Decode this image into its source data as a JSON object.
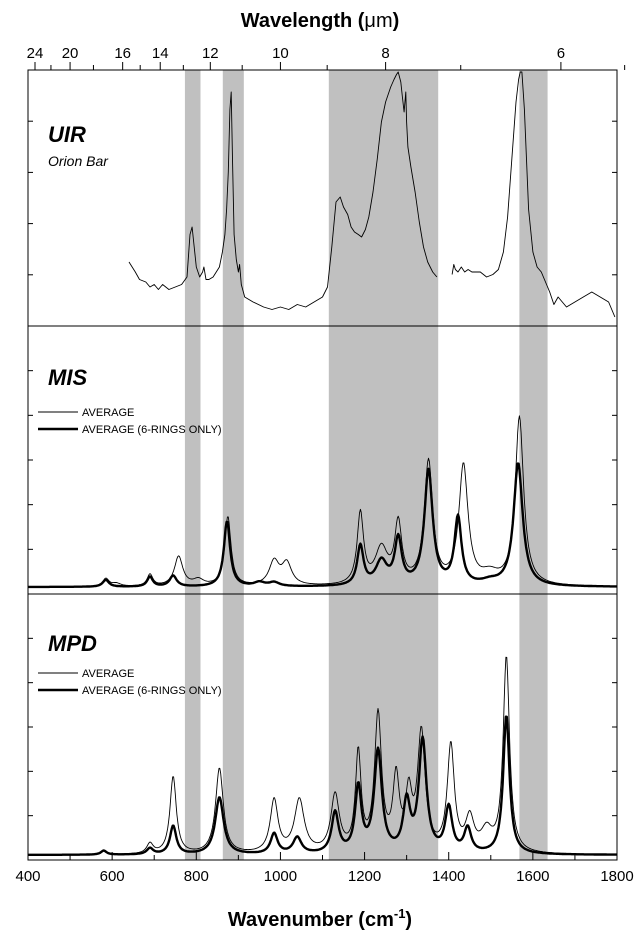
{
  "chart_data": {
    "type": "line",
    "x_label": "Wavenumber (cm",
    "x_label_sup": "-1",
    "x_label_end": ")",
    "x_range": [
      400,
      1800
    ],
    "x_ticks": [
      "400",
      "600",
      "800",
      "1000",
      "1200",
      "1400",
      "1600",
      "1800"
    ],
    "top_axis_label": "Wavelength (",
    "top_axis_label_mu": "μm",
    "top_axis_label_end": ")",
    "top_ticks": [
      {
        "label": "24",
        "value": 24
      },
      {
        "label": "20",
        "value": 20
      },
      {
        "label": "16",
        "value": 16
      },
      {
        "label": "14",
        "value": 14
      },
      {
        "label": "12",
        "value": 12
      },
      {
        "label": "10",
        "value": 10
      },
      {
        "label": "8",
        "value": 8
      },
      {
        "label": "6",
        "value": 6
      }
    ],
    "top_minor_ticks": [
      22,
      18,
      15,
      13,
      11,
      9,
      7,
      5.5
    ],
    "shaded_bands": [
      [
        773,
        810
      ],
      [
        863,
        913
      ],
      [
        1115,
        1375
      ],
      [
        1568,
        1635
      ]
    ],
    "colors": {
      "band": "#c0c0c0",
      "line": "#000000"
    },
    "panels": [
      {
        "title": "UIR",
        "subtitle": "Orion Bar",
        "legend": [],
        "series": [
          {
            "style": "thin",
            "points": [
              [
                640,
                0.24
              ],
              [
                655,
                0.2
              ],
              [
                665,
                0.17
              ],
              [
                680,
                0.16
              ],
              [
                690,
                0.14
              ],
              [
                700,
                0.15
              ],
              [
                710,
                0.13
              ],
              [
                720,
                0.15
              ],
              [
                735,
                0.13
              ],
              [
                750,
                0.14
              ],
              [
                765,
                0.15
              ],
              [
                778,
                0.18
              ],
              [
                785,
                0.35
              ],
              [
                790,
                0.38
              ],
              [
                795,
                0.3
              ],
              [
                800,
                0.22
              ],
              [
                808,
                0.18
              ],
              [
                815,
                0.2
              ],
              [
                818,
                0.22
              ],
              [
                823,
                0.17
              ],
              [
                830,
                0.17
              ],
              [
                840,
                0.18
              ],
              [
                855,
                0.22
              ],
              [
                862,
                0.28
              ],
              [
                868,
                0.35
              ],
              [
                872,
                0.45
              ],
              [
                876,
                0.6
              ],
              [
                880,
                0.85
              ],
              [
                883,
                0.92
              ],
              [
                886,
                0.65
              ],
              [
                890,
                0.35
              ],
              [
                895,
                0.25
              ],
              [
                900,
                0.2
              ],
              [
                903,
                0.23
              ],
              [
                907,
                0.15
              ],
              [
                915,
                0.1
              ],
              [
                935,
                0.08
              ],
              [
                960,
                0.06
              ],
              [
                980,
                0.05
              ],
              [
                1000,
                0.06
              ],
              [
                1020,
                0.05
              ],
              [
                1040,
                0.07
              ],
              [
                1060,
                0.06
              ],
              [
                1080,
                0.08
              ],
              [
                1100,
                0.1
              ],
              [
                1112,
                0.14
              ],
              [
                1122,
                0.3
              ],
              [
                1132,
                0.48
              ],
              [
                1142,
                0.5
              ],
              [
                1150,
                0.46
              ],
              [
                1160,
                0.43
              ],
              [
                1168,
                0.38
              ],
              [
                1176,
                0.36
              ],
              [
                1185,
                0.35
              ],
              [
                1193,
                0.34
              ],
              [
                1202,
                0.37
              ],
              [
                1210,
                0.42
              ],
              [
                1220,
                0.52
              ],
              [
                1230,
                0.65
              ],
              [
                1240,
                0.8
              ],
              [
                1250,
                0.88
              ],
              [
                1262,
                0.94
              ],
              [
                1270,
                0.97
              ],
              [
                1276,
                0.99
              ],
              [
                1280,
                1.0
              ],
              [
                1286,
                0.96
              ],
              [
                1290,
                0.9
              ],
              [
                1294,
                0.84
              ],
              [
                1298,
                0.92
              ],
              [
                1300,
                0.8
              ],
              [
                1303,
                0.7
              ],
              [
                1310,
                0.62
              ],
              [
                1320,
                0.52
              ],
              [
                1330,
                0.4
              ],
              [
                1340,
                0.3
              ],
              [
                1350,
                0.24
              ],
              [
                1362,
                0.2
              ],
              [
                1372,
                0.18
              ]
            ]
          },
          {
            "style": "thin",
            "points": [
              [
                1408,
                0.19
              ],
              [
                1412,
                0.23
              ],
              [
                1416,
                0.21
              ],
              [
                1422,
                0.2
              ],
              [
                1430,
                0.22
              ],
              [
                1438,
                0.2
              ],
              [
                1446,
                0.21
              ],
              [
                1455,
                0.2
              ],
              [
                1465,
                0.2
              ],
              [
                1475,
                0.2
              ],
              [
                1490,
                0.18
              ],
              [
                1505,
                0.19
              ],
              [
                1518,
                0.21
              ],
              [
                1530,
                0.28
              ],
              [
                1540,
                0.42
              ],
              [
                1550,
                0.65
              ],
              [
                1560,
                0.88
              ],
              [
                1566,
                0.97
              ],
              [
                1570,
                1.0
              ],
              [
                1574,
                1.0
              ],
              [
                1580,
                0.85
              ],
              [
                1590,
                0.45
              ],
              [
                1600,
                0.28
              ],
              [
                1610,
                0.22
              ],
              [
                1620,
                0.2
              ],
              [
                1630,
                0.16
              ],
              [
                1640,
                0.12
              ],
              [
                1650,
                0.07
              ],
              [
                1660,
                0.1
              ],
              [
                1670,
                0.08
              ],
              [
                1680,
                0.06
              ],
              [
                1700,
                0.08
              ],
              [
                1720,
                0.1
              ],
              [
                1740,
                0.12
              ],
              [
                1760,
                0.1
              ],
              [
                1780,
                0.08
              ],
              [
                1795,
                0.02
              ]
            ]
          }
        ]
      },
      {
        "title": "MIS",
        "subtitle": "",
        "legend": [
          {
            "label": "AVERAGE",
            "style": "thin"
          },
          {
            "label": "AVERAGE (6-RINGS ONLY)",
            "style": "thick"
          }
        ],
        "series": [
          {
            "name": "AVERAGE",
            "style": "thin",
            "peaks": [
              [
                585,
                0.04,
                9
              ],
              [
                610,
                0.015,
                12
              ],
              [
                690,
                0.06,
                8
              ],
              [
                758,
                0.15,
                12
              ],
              [
                805,
                0.03,
                15
              ],
              [
                875,
                0.35,
                9
              ],
              [
                985,
                0.12,
                14
              ],
              [
                1015,
                0.11,
                14
              ],
              [
                1190,
                0.36,
                9
              ],
              [
                1240,
                0.18,
                18
              ],
              [
                1280,
                0.3,
                10
              ],
              [
                1352,
                0.62,
                12
              ],
              [
                1435,
                0.6,
                13
              ],
              [
                1498,
                0.05,
                25
              ],
              [
                1568,
                0.85,
                12
              ]
            ]
          },
          {
            "name": "AVERAGE (6-RINGS ONLY)",
            "style": "thick",
            "peaks": [
              [
                585,
                0.035,
                9
              ],
              [
                690,
                0.05,
                8
              ],
              [
                745,
                0.055,
                10
              ],
              [
                873,
                0.33,
                9
              ],
              [
                950,
                0.02,
                15
              ],
              [
                985,
                0.02,
                15
              ],
              [
                1190,
                0.2,
                9
              ],
              [
                1240,
                0.12,
                16
              ],
              [
                1280,
                0.23,
                10
              ],
              [
                1352,
                0.58,
                12
              ],
              [
                1422,
                0.34,
                10
              ],
              [
                1498,
                0.02,
                25
              ],
              [
                1565,
                0.62,
                13
              ]
            ]
          }
        ]
      },
      {
        "title": "MPD",
        "subtitle": "",
        "legend": [
          {
            "label": "AVERAGE",
            "style": "thin"
          },
          {
            "label": "AVERAGE (6-RINGS ONLY)",
            "style": "thick"
          }
        ],
        "series": [
          {
            "name": "AVERAGE",
            "style": "thin",
            "peaks": [
              [
                580,
                0.02,
                8
              ],
              [
                690,
                0.05,
                9
              ],
              [
                745,
                0.38,
                9
              ],
              [
                855,
                0.42,
                11
              ],
              [
                985,
                0.26,
                11
              ],
              [
                1045,
                0.26,
                14
              ],
              [
                1130,
                0.28,
                12
              ],
              [
                1185,
                0.48,
                8
              ],
              [
                1232,
                0.67,
                10
              ],
              [
                1275,
                0.35,
                9
              ],
              [
                1305,
                0.26,
                9
              ],
              [
                1335,
                0.58,
                11
              ],
              [
                1405,
                0.52,
                10
              ],
              [
                1450,
                0.16,
                12
              ],
              [
                1490,
                0.1,
                16
              ],
              [
                1537,
                0.96,
                9
              ]
            ]
          },
          {
            "name": "AVERAGE (6-RINGS ONLY)",
            "style": "thick",
            "peaks": [
              [
                580,
                0.02,
                8
              ],
              [
                690,
                0.03,
                9
              ],
              [
                745,
                0.14,
                9
              ],
              [
                855,
                0.28,
                12
              ],
              [
                985,
                0.1,
                10
              ],
              [
                1040,
                0.08,
                12
              ],
              [
                1130,
                0.2,
                10
              ],
              [
                1185,
                0.32,
                9
              ],
              [
                1232,
                0.5,
                11
              ],
              [
                1300,
                0.24,
                10
              ],
              [
                1338,
                0.55,
                11
              ],
              [
                1400,
                0.22,
                10
              ],
              [
                1445,
                0.12,
                10
              ],
              [
                1537,
                0.68,
                9
              ]
            ]
          }
        ]
      }
    ]
  }
}
